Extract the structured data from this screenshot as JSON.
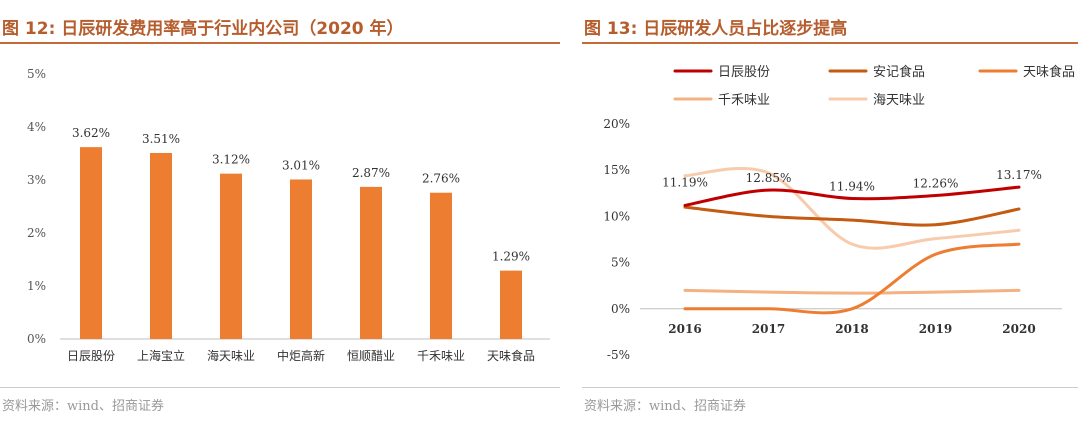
{
  "left": {
    "title": "图 12:  日辰研发费用率高于行业内公司（2020 年）",
    "source": "资料来源：wind、招商证券"
  },
  "right": {
    "title": "图 13:  日辰研发人员占比逐步提高",
    "source": "资料来源：wind、招商证券"
  },
  "chart_data": [
    {
      "type": "bar",
      "title": "日辰研发费用率高于行业内公司（2020 年）",
      "categories": [
        "日辰股份",
        "上海宝立",
        "海天味业",
        "中炬高新",
        "恒顺醋业",
        "千禾味业",
        "天味食品"
      ],
      "values": [
        3.62,
        3.51,
        3.12,
        3.01,
        2.87,
        2.76,
        1.29
      ],
      "data_labels": [
        "3.62%",
        "3.51%",
        "3.12%",
        "3.01%",
        "2.87%",
        "2.76%",
        "1.29%"
      ],
      "ylim": [
        0,
        5
      ],
      "yticks": [
        "0%",
        "1%",
        "2%",
        "3%",
        "4%",
        "5%"
      ],
      "color": "#ed7d31",
      "xlabel": "",
      "ylabel": ""
    },
    {
      "type": "line",
      "title": "日辰研发人员占比逐步提高",
      "x": [
        "2016",
        "2017",
        "2018",
        "2019",
        "2020"
      ],
      "ylim": [
        -5,
        20
      ],
      "yticks": [
        "-5%",
        "0%",
        "5%",
        "10%",
        "15%",
        "20%"
      ],
      "series": [
        {
          "name": "日辰股份",
          "color": "#c00000",
          "values": [
            11.19,
            12.85,
            11.94,
            12.26,
            13.17
          ],
          "labels": [
            "11.19%",
            "12.85%",
            "11.94%",
            "12.26%",
            "13.17%"
          ]
        },
        {
          "name": "安记食品",
          "color": "#c55a11",
          "values": [
            11.0,
            10.0,
            9.6,
            9.1,
            10.8
          ]
        },
        {
          "name": "天味食品",
          "color": "#ed7d31",
          "values": [
            0.0,
            0.0,
            0.0,
            5.9,
            7.0
          ]
        },
        {
          "name": "千禾味业",
          "color": "#f4b183",
          "values": [
            2.0,
            1.8,
            1.7,
            1.8,
            2.0
          ]
        },
        {
          "name": "海天味业",
          "color": "#f8cbad",
          "values": [
            14.4,
            14.7,
            7.0,
            7.6,
            8.5
          ]
        }
      ],
      "legend_position": "top"
    }
  ]
}
